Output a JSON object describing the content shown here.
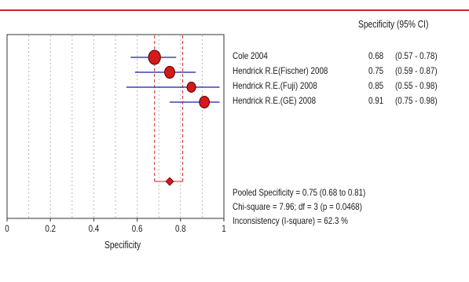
{
  "header": {
    "column_title": "Specificity (95% CI)"
  },
  "studies": [
    {
      "name": "Cole 2004",
      "value": "0.68",
      "ci": "(0.57 - 0.78)"
    },
    {
      "name": "Hendrick R.E(Fischer) 2008",
      "value": "0.75",
      "ci": "(0.59 - 0.87)"
    },
    {
      "name": "Hendrick R.E.(Fuji) 2008",
      "value": "0.85",
      "ci": "(0.55 - 0.98)"
    },
    {
      "name": "Hendrick R.E.(GE) 2008",
      "value": "0.91",
      "ci": "(0.75 - 0.98)"
    }
  ],
  "summary": {
    "pooled": "Pooled Specificity = 0.75 (0.68 to 0.81)",
    "chisq": "Chi-square = 7.96; df = 3 (p = 0.0468)",
    "inconsistency": "Inconsistency (I-square) = 62.3 %"
  },
  "chart_data": {
    "type": "forest",
    "xlabel": "Specificity",
    "xlim": [
      0,
      1
    ],
    "xticks": [
      "0",
      "0.2",
      "0.4",
      "0.6",
      "0.8",
      "1"
    ],
    "xtick_values": [
      0,
      0.2,
      0.4,
      0.6,
      0.8,
      1
    ],
    "gridlines": [
      0.1,
      0.2,
      0.3,
      0.4,
      0.5,
      0.6,
      0.7,
      0.8,
      0.9
    ],
    "studies": [
      {
        "est": 0.68,
        "lo": 0.57,
        "hi": 0.78,
        "weight": 1.0
      },
      {
        "est": 0.75,
        "lo": 0.59,
        "hi": 0.87,
        "weight": 0.72
      },
      {
        "est": 0.85,
        "lo": 0.55,
        "hi": 0.98,
        "weight": 0.5
      },
      {
        "est": 0.91,
        "lo": 0.75,
        "hi": 0.98,
        "weight": 0.7
      }
    ],
    "pooled": {
      "est": 0.75,
      "lo": 0.68,
      "hi": 0.81
    },
    "colors": {
      "point": "#d41a1a",
      "ci_line": "#1a1aa8",
      "pooled_line": "#d42a2a",
      "grid": "#b8b8b8",
      "frame": "#333333",
      "top_rule": "#d62020"
    }
  }
}
